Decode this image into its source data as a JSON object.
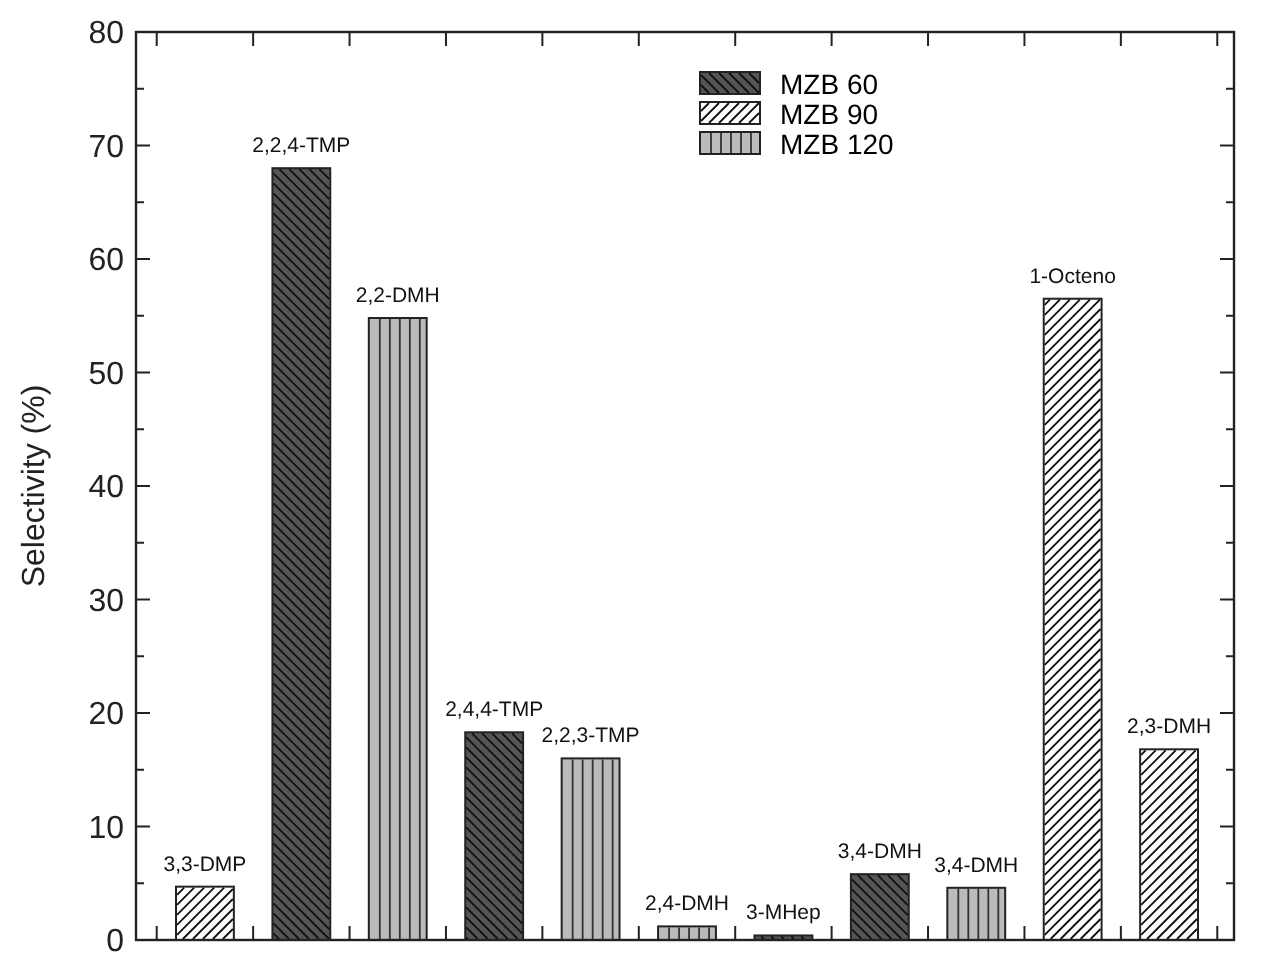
{
  "chart_data": {
    "type": "bar",
    "ylabel": "Selectivity (%)",
    "categories": [
      null,
      null,
      null,
      null,
      null,
      null,
      null,
      null,
      null,
      null,
      null
    ],
    "ylim": [
      0,
      80
    ],
    "yticks": [
      0,
      10,
      20,
      30,
      40,
      50,
      60,
      70,
      80
    ],
    "legend": "top",
    "grid": false,
    "stacked": true,
    "annotations": [
      "3,3-DMP",
      "2,2,4-TMP",
      "2,2-DMH",
      "2,4,4-TMP",
      "2,2,3-TMP",
      "2,4-DMH",
      "3-MHep",
      "3,4-DMH",
      "3,4-DMH",
      "1-Octeno",
      "2,3-DMH"
    ],
    "series": [
      {
        "name": "MZB 60",
        "color": "#555555",
        "values": [
          null,
          68,
          null,
          18.3,
          null,
          null,
          0.4,
          5.8,
          null,
          null,
          null
        ]
      },
      {
        "name": "MZB 90",
        "color": "#ffffff",
        "values": [
          4.7,
          null,
          null,
          null,
          null,
          null,
          null,
          null,
          null,
          56.5,
          16.8
        ]
      },
      {
        "name": "MZB 120",
        "color": "#bbbbbb",
        "values": [
          null,
          null,
          54.8,
          null,
          16,
          1.2,
          null,
          null,
          4.6,
          null,
          null
        ]
      }
    ]
  }
}
